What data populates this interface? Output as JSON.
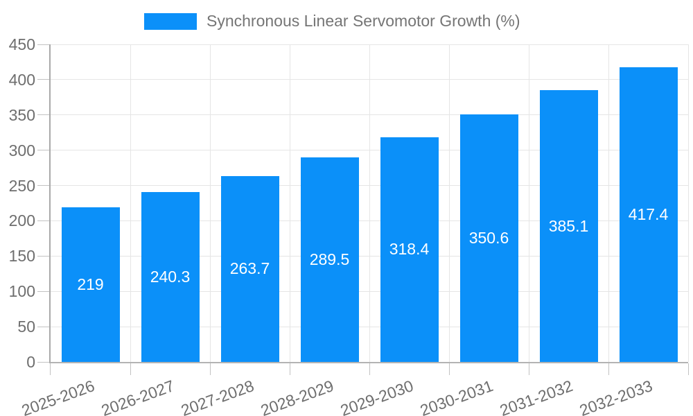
{
  "legend": {
    "label": "Synchronous Linear Servomotor Growth (%)"
  },
  "chart_data": {
    "type": "bar",
    "title": "Synchronous Linear Servomotor Growth (%)",
    "categories": [
      "2025-2026",
      "2026-2027",
      "2027-2028",
      "2028-2029",
      "2029-2030",
      "2030-2031",
      "2031-2032",
      "2032-2033"
    ],
    "series": [
      {
        "name": "Synchronous Linear Servomotor Growth (%)",
        "values": [
          219,
          240.3,
          263.7,
          289.5,
          318.4,
          350.6,
          385.1,
          417.4
        ]
      }
    ],
    "bar_labels": [
      "219",
      "240.3",
      "263.7",
      "289.5",
      "318.4",
      "350.6",
      "385.1",
      "417.4"
    ],
    "xlabel": "",
    "ylabel": "",
    "ylim": [
      0,
      450
    ],
    "yticks": [
      0,
      50,
      100,
      150,
      200,
      250,
      300,
      350,
      400,
      450
    ],
    "grid": true,
    "legend_position": "top",
    "x_label_rotation_deg": -20,
    "colors": {
      "bar": "#0b90f9",
      "bar_label": "#ffffff",
      "grid": "#e5e5e5",
      "axis": "#a9a9a9",
      "tick": "#c2c2c2",
      "tick_label": "#6e6e6e",
      "legend_text": "#757575",
      "background": "#ffffff"
    }
  }
}
